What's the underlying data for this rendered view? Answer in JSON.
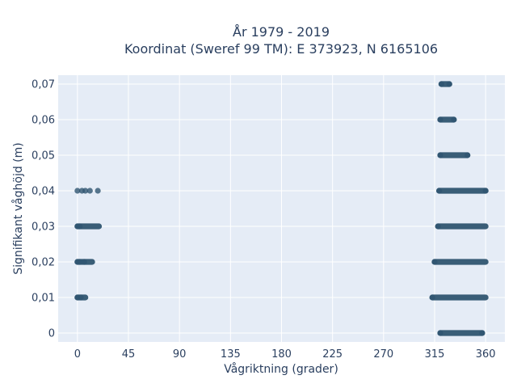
{
  "chart_data": {
    "type": "scatter",
    "title_line1": "År 1979 - 2019",
    "title_line2": "Koordinat (Sweref 99 TM): E 373923, N 6165106",
    "xlabel": "Vågriktning (grader)",
    "ylabel": "Signifikant våghöjd (m)",
    "xlim": [
      -17,
      377
    ],
    "ylim": [
      -0.0025,
      0.0725
    ],
    "x_ticks": [
      0,
      45,
      90,
      135,
      180,
      225,
      270,
      315,
      360
    ],
    "x_tick_labels": [
      "0",
      "45",
      "90",
      "135",
      "180",
      "225",
      "270",
      "315",
      "360"
    ],
    "y_ticks": [
      0,
      0.01,
      0.02,
      0.03,
      0.04,
      0.05,
      0.06,
      0.07
    ],
    "y_tick_labels": [
      "0",
      "0,01",
      "0,02",
      "0,03",
      "0,04",
      "0,05",
      "0,06",
      "0,07"
    ],
    "grid": true,
    "marker_color": "#2f5570",
    "plot_bg": "#e5ecf6",
    "clusters": [
      {
        "y": 0.0,
        "x_from": 320,
        "x_to": 357
      },
      {
        "y": 0.01,
        "x_from": 0,
        "x_to": 7
      },
      {
        "y": 0.01,
        "x_from": 313,
        "x_to": 360
      },
      {
        "y": 0.02,
        "x_from": 0,
        "x_to": 13
      },
      {
        "y": 0.02,
        "x_from": 315,
        "x_to": 360
      },
      {
        "y": 0.03,
        "x_from": 0,
        "x_to": 19
      },
      {
        "y": 0.03,
        "x_from": 318,
        "x_to": 360
      },
      {
        "y": 0.04,
        "x_from": 319,
        "x_to": 360
      },
      {
        "y": 0.05,
        "x_from": 320,
        "x_to": 344
      },
      {
        "y": 0.06,
        "x_from": 320,
        "x_to": 332
      },
      {
        "y": 0.07,
        "x_from": 321,
        "x_to": 328
      }
    ],
    "points": [
      {
        "x": 0,
        "y": 0.04
      },
      {
        "x": 4,
        "y": 0.04
      },
      {
        "x": 7,
        "y": 0.04
      },
      {
        "x": 11,
        "y": 0.04
      },
      {
        "x": 18,
        "y": 0.04
      },
      {
        "x": 0,
        "y": 0.03
      },
      {
        "x": 2,
        "y": 0.03
      },
      {
        "x": 0,
        "y": 0.02
      },
      {
        "x": 2,
        "y": 0.02
      },
      {
        "x": 6,
        "y": 0.02
      },
      {
        "x": 0,
        "y": 0.01
      },
      {
        "x": 3,
        "y": 0.01
      },
      {
        "x": 320,
        "y": 0.0
      },
      {
        "x": 357,
        "y": 0.0
      },
      {
        "x": 313,
        "y": 0.01
      },
      {
        "x": 315,
        "y": 0.02
      },
      {
        "x": 318,
        "y": 0.03
      },
      {
        "x": 319,
        "y": 0.04
      },
      {
        "x": 360,
        "y": 0.04
      },
      {
        "x": 320,
        "y": 0.05
      },
      {
        "x": 344,
        "y": 0.05
      },
      {
        "x": 320,
        "y": 0.06
      },
      {
        "x": 332,
        "y": 0.06
      },
      {
        "x": 321,
        "y": 0.07
      },
      {
        "x": 328,
        "y": 0.07
      }
    ]
  }
}
